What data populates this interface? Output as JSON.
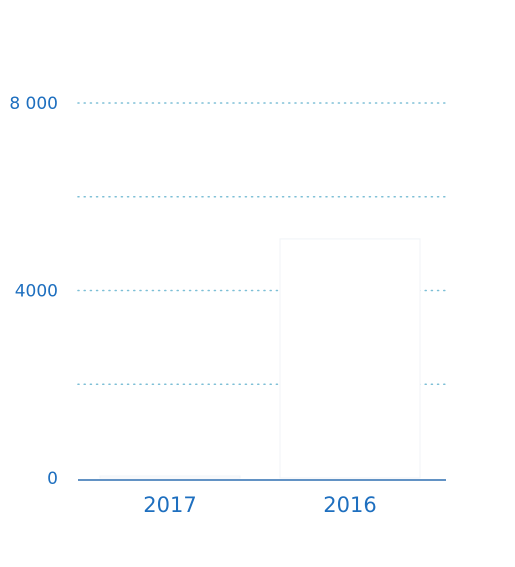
{
  "colors": {
    "accent": "#1e6fbf",
    "gridline": "#7dbfd6",
    "bar_fill": "#ffffff",
    "bar_stroke": "#f2f5f8",
    "baseline": "#2f6fb0"
  },
  "chart_data": {
    "type": "bar",
    "categories": [
      "2017",
      "2016"
    ],
    "values": [
      40,
      5100
    ],
    "ylim": [
      0,
      8000
    ],
    "y_ticks": [
      {
        "value": 0,
        "label": "0"
      },
      {
        "value": 2000,
        "label": ""
      },
      {
        "value": 4000,
        "label": "4000"
      },
      {
        "value": 6000,
        "label": ""
      },
      {
        "value": 8000,
        "label": "8 000"
      }
    ],
    "grid": true,
    "legend": "none"
  }
}
